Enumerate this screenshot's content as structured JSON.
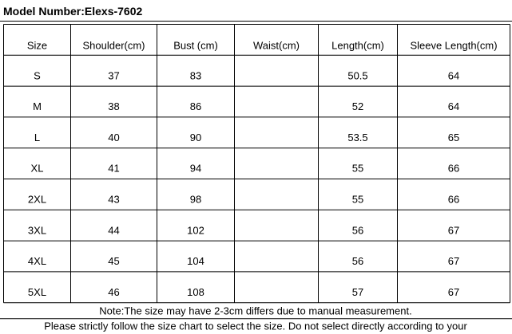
{
  "header": {
    "title": "Model Number:Elexs-7602"
  },
  "table": {
    "columns": [
      "Size",
      "Shoulder(cm)",
      "Bust (cm)",
      "Waist(cm)",
      "Length(cm)",
      "Sleeve Length(cm)"
    ],
    "rows": [
      [
        "S",
        "37",
        "83",
        null,
        "50.5",
        "64"
      ],
      [
        "M",
        "38",
        "86",
        null,
        "52",
        "64"
      ],
      [
        "L",
        "40",
        "90",
        null,
        "53.5",
        "65"
      ],
      [
        "XL",
        "41",
        "94",
        null,
        "55",
        "66"
      ],
      [
        "2XL",
        "43",
        "98",
        null,
        "55",
        "66"
      ],
      [
        "3XL",
        "44",
        "102",
        null,
        "56",
        "67"
      ],
      [
        "4XL",
        "45",
        "104",
        null,
        "56",
        "67"
      ],
      [
        "5XL",
        "46",
        "108",
        null,
        "57",
        "67"
      ]
    ]
  },
  "notes": [
    "Note:The size may have 2-3cm differs due to manual measurement.",
    "Please strictly follow the size chart to select the size. Do not select directly according to your"
  ]
}
